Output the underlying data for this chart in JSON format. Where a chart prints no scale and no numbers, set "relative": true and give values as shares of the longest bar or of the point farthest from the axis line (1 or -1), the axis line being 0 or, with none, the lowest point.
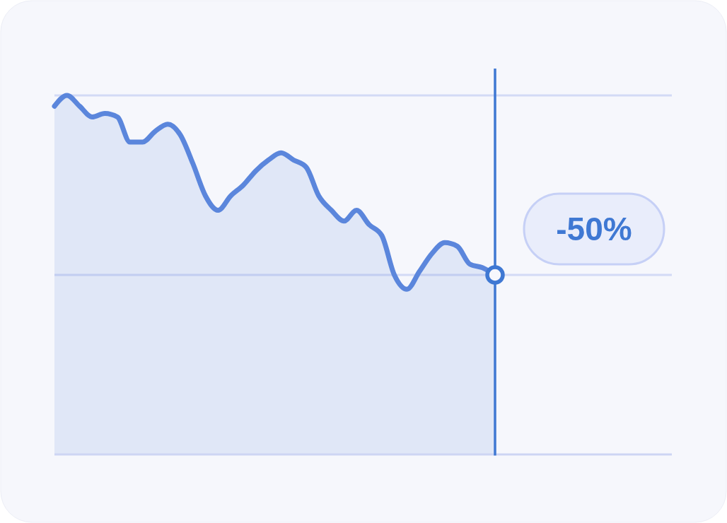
{
  "chart_data": {
    "type": "area",
    "relative": true,
    "categories": [
      null,
      null,
      null,
      null,
      null,
      null,
      null,
      null,
      null,
      null,
      null,
      null,
      null,
      null,
      null,
      null,
      null,
      null,
      null,
      null,
      null,
      null,
      null,
      null,
      null,
      null,
      null,
      null,
      null,
      null,
      null,
      null,
      null,
      null,
      null,
      null
    ],
    "series": [
      {
        "color": "#5b86dc",
        "values": [
          0.97,
          1.0,
          0.97,
          0.94,
          0.95,
          0.94,
          0.87,
          0.87,
          0.9,
          0.92,
          0.89,
          0.81,
          0.72,
          0.68,
          0.72,
          0.75,
          0.79,
          0.82,
          0.84,
          0.82,
          0.8,
          0.72,
          0.68,
          0.65,
          0.68,
          0.64,
          0.61,
          0.5,
          0.46,
          0.51,
          0.56,
          0.59,
          0.58,
          0.53,
          0.52,
          0.5
        ]
      }
    ],
    "ref_lines": [
      {
        "axis": "y",
        "value": 1.0,
        "color": "#d3daf5"
      },
      {
        "axis": "y",
        "value": 0.5,
        "color": "#d3daf5"
      }
    ],
    "annotations": [
      "-50%"
    ]
  }
}
